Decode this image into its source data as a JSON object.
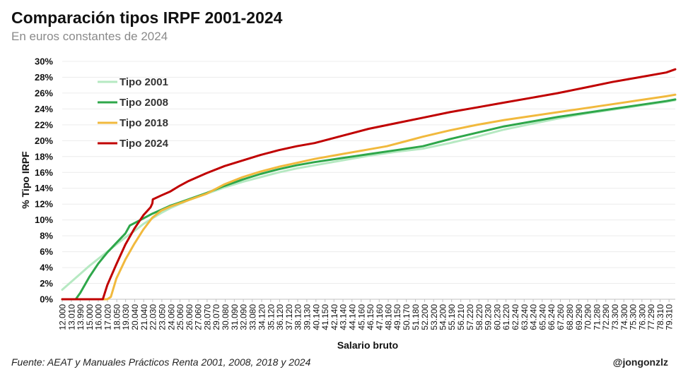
{
  "title": "Comparación tipos IRPF 2001-2024",
  "subtitle": "En euros constantes de 2024",
  "footer": {
    "source": "Fuente: AEAT y Manuales Prácticos Renta 2001, 2008, 2018 y 2024",
    "credit": "@jongonzlz"
  },
  "chart_data": {
    "type": "line",
    "xlabel": "Salario bruto",
    "ylabel": "% Tipo IRPF",
    "ylim": [
      0,
      30
    ],
    "y_ticks": [
      0,
      2,
      4,
      6,
      8,
      10,
      12,
      14,
      16,
      18,
      20,
      22,
      24,
      26,
      28,
      30
    ],
    "y_tick_suffix": "%",
    "xlim": [
      12000,
      80000
    ],
    "x_tick_labels": [
      "12.000",
      "13.010",
      "13.990",
      "15.000",
      "16.000",
      "17.020",
      "18.050",
      "19.030",
      "20.040",
      "21.040",
      "22.030",
      "23.050",
      "24.060",
      "25.060",
      "26.060",
      "27.060",
      "28.070",
      "29.070",
      "30.080",
      "31.090",
      "32.090",
      "33.080",
      "34.120",
      "35.120",
      "36.120",
      "37.120",
      "38.120",
      "39.130",
      "40.140",
      "41.150",
      "42.140",
      "43.140",
      "44.140",
      "45.160",
      "46.150",
      "47.160",
      "48.160",
      "49.150",
      "50.170",
      "51.180",
      "52.200",
      "53.200",
      "54.200",
      "55.190",
      "56.210",
      "57.220",
      "58.220",
      "59.230",
      "60.230",
      "61.220",
      "62.240",
      "63.240",
      "64.240",
      "65.240",
      "66.240",
      "67.260",
      "68.280",
      "69.290",
      "70.290",
      "71.280",
      "72.290",
      "73.300",
      "74.300",
      "75.300",
      "76.300",
      "77.290",
      "78.310",
      "79.310"
    ],
    "x_tick_values": [
      12000,
      13010,
      13990,
      15000,
      16000,
      17020,
      18050,
      19030,
      20040,
      21040,
      22030,
      23050,
      24060,
      25060,
      26060,
      27060,
      28070,
      29070,
      30080,
      31090,
      32090,
      33080,
      34120,
      35120,
      36120,
      37120,
      38120,
      39130,
      40140,
      41150,
      42140,
      43140,
      44140,
      45160,
      46150,
      47160,
      48160,
      49150,
      50170,
      51180,
      52200,
      53200,
      54200,
      55190,
      56210,
      57220,
      58220,
      59230,
      60230,
      61220,
      62240,
      63240,
      64240,
      65240,
      66240,
      67260,
      68280,
      69290,
      70290,
      71280,
      72290,
      73300,
      74300,
      75300,
      76300,
      77290,
      78310,
      79310
    ],
    "grid": "horizontal",
    "legend_position": "top-left",
    "series": [
      {
        "name": "Tipo 2001",
        "color": "#b6e9c2",
        "x": [
          12000,
          13000,
          14000,
          15000,
          16000,
          17000,
          18000,
          19000,
          20000,
          21000,
          22000,
          23000,
          24000,
          25000,
          26000,
          28000,
          30000,
          32000,
          34000,
          36000,
          38000,
          40000,
          43000,
          46000,
          49000,
          52000,
          55000,
          58000,
          61000,
          64000,
          67000,
          70000,
          73000,
          76000,
          79000,
          80000
        ],
        "y": [
          1.2,
          2.2,
          3.2,
          4.2,
          5.1,
          6.0,
          6.9,
          7.8,
          8.6,
          9.5,
          10.2,
          10.9,
          11.5,
          12.0,
          12.5,
          13.3,
          14.1,
          14.8,
          15.4,
          16.0,
          16.5,
          16.9,
          17.5,
          18.1,
          18.6,
          19.0,
          19.7,
          20.5,
          21.4,
          22.1,
          22.8,
          23.4,
          23.9,
          24.4,
          24.9,
          25.1
        ]
      },
      {
        "name": "Tipo 2008",
        "color": "#2ea74a",
        "x": [
          12000,
          13000,
          13500,
          14000,
          15000,
          16000,
          17000,
          18000,
          19000,
          19500,
          20000,
          21000,
          22000,
          23000,
          24000,
          25000,
          26000,
          28000,
          30000,
          32000,
          34000,
          36000,
          38000,
          40000,
          43000,
          46000,
          49000,
          52000,
          55000,
          58000,
          61000,
          64000,
          67000,
          70000,
          73000,
          76000,
          79000,
          80000
        ],
        "y": [
          0,
          0,
          0,
          0.8,
          2.8,
          4.5,
          5.9,
          7.1,
          8.3,
          9.3,
          9.6,
          10.2,
          10.8,
          11.3,
          11.8,
          12.2,
          12.6,
          13.4,
          14.3,
          15.1,
          15.8,
          16.4,
          16.9,
          17.3,
          17.8,
          18.3,
          18.8,
          19.3,
          20.2,
          21.0,
          21.8,
          22.4,
          23.0,
          23.5,
          24.0,
          24.5,
          25.0,
          25.2
        ]
      },
      {
        "name": "Tipo 2018",
        "color": "#f1b93d",
        "x": [
          12000,
          14000,
          16000,
          17000,
          17400,
          18000,
          19000,
          20000,
          21000,
          22000,
          23000,
          24000,
          25000,
          26000,
          28000,
          30000,
          32000,
          34000,
          36000,
          38000,
          40000,
          43000,
          46000,
          48000,
          50000,
          52000,
          55000,
          58000,
          61000,
          64000,
          67000,
          70000,
          73000,
          76000,
          79000,
          80000
        ],
        "y": [
          0,
          0,
          0,
          0,
          0.3,
          2.6,
          5.0,
          7.0,
          8.8,
          10.3,
          11.2,
          11.7,
          12.1,
          12.5,
          13.3,
          14.5,
          15.4,
          16.1,
          16.7,
          17.2,
          17.7,
          18.3,
          18.9,
          19.3,
          19.9,
          20.5,
          21.3,
          22.0,
          22.6,
          23.1,
          23.6,
          24.1,
          24.6,
          25.1,
          25.6,
          25.8
        ]
      },
      {
        "name": "Tipo 2024",
        "color": "#c00000",
        "x": [
          12000,
          15000,
          16500,
          17000,
          18000,
          19000,
          20000,
          21000,
          21800,
          22000,
          22050,
          23000,
          24000,
          25000,
          26000,
          28000,
          30000,
          32000,
          34000,
          36000,
          38000,
          40000,
          43000,
          46000,
          49000,
          52000,
          55000,
          58000,
          61000,
          64000,
          67000,
          70000,
          73000,
          76000,
          79000,
          80000
        ],
        "y": [
          0,
          0,
          0,
          1.8,
          4.4,
          6.9,
          8.9,
          10.6,
          11.6,
          12.1,
          12.6,
          13.1,
          13.6,
          14.3,
          14.9,
          15.9,
          16.8,
          17.5,
          18.2,
          18.8,
          19.3,
          19.7,
          20.6,
          21.5,
          22.2,
          22.9,
          23.6,
          24.2,
          24.8,
          25.4,
          26.0,
          26.7,
          27.4,
          28.0,
          28.6,
          29.0
        ]
      }
    ]
  }
}
